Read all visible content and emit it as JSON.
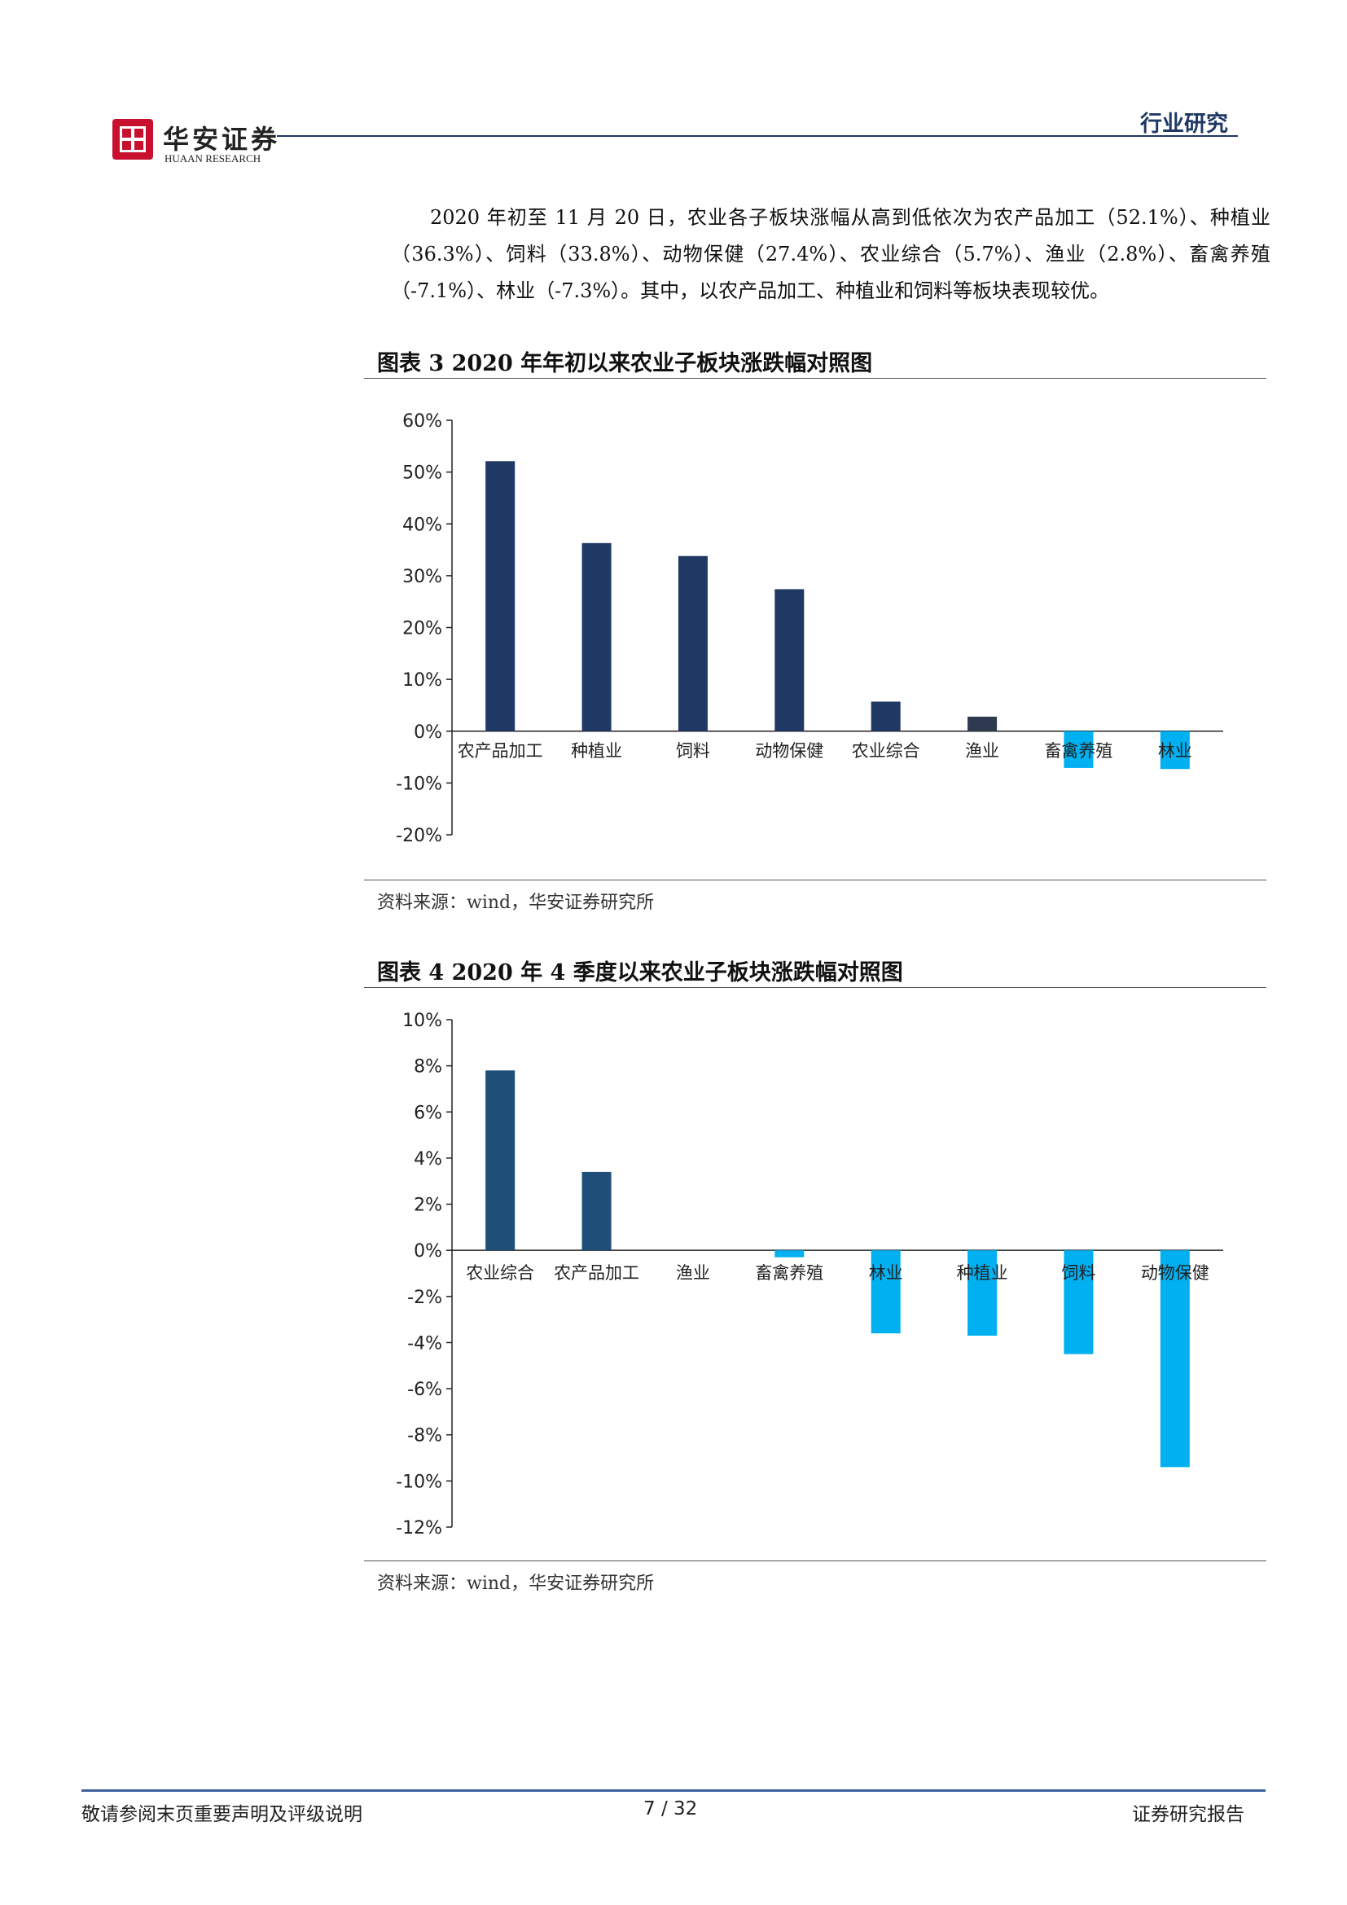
{
  "header": {
    "brand_name": "华安证券",
    "brand_sub": "HUAAN RESEARCH",
    "section": "行业研究"
  },
  "paragraph": "2020 年初至 11 月 20 日，农业各子板块涨幅从高到低依次为农产品加工（52.1%）、种植业（36.3%）、饲料（33.8%）、动物保健（27.4%）、农业综合（5.7%）、渔业（2.8%）、畜禽养殖（-7.1%）、林业（-7.3%）。其中，以农产品加工、种植业和饲料等板块表现较优。",
  "figure3": {
    "title": "图表  3 2020 年年初以来农业子板块涨跌幅对照图",
    "source": "资料来源：wind，华安证券研究所"
  },
  "figure4": {
    "title": "图表  4 2020 年 4 季度以来农业子板块涨跌幅对照图",
    "source": "资料来源：wind，华安证券研究所"
  },
  "chart_data": [
    {
      "type": "bar",
      "title": "图表  3 2020 年年初以来农业子板块涨跌幅对照图",
      "categories": [
        "农产品加工",
        "种植业",
        "饲料",
        "动物保健",
        "农业综合",
        "渔业",
        "畜禽养殖",
        "林业"
      ],
      "values": [
        52.1,
        36.3,
        33.8,
        27.4,
        5.7,
        2.8,
        -7.1,
        -7.3
      ],
      "colors": [
        "#1f3864",
        "#1f3864",
        "#1f3864",
        "#1f3864",
        "#1f3864",
        "#2e3a4f",
        "#00b0f0",
        "#00b0f0"
      ],
      "ylim": [
        -20,
        60
      ],
      "yticks": [
        60,
        50,
        40,
        30,
        20,
        10,
        0,
        -10,
        -20
      ],
      "ytick_labels": [
        "60%",
        "50%",
        "40%",
        "30%",
        "20%",
        "10%",
        "0%",
        "-10%",
        "-20%"
      ],
      "grid": false,
      "legend": "none"
    },
    {
      "type": "bar",
      "title": "图表  4 2020 年 4 季度以来农业子板块涨跌幅对照图",
      "categories": [
        "农业综合",
        "农产品加工",
        "渔业",
        "畜禽养殖",
        "林业",
        "种植业",
        "饲料",
        "动物保健"
      ],
      "values": [
        7.8,
        3.4,
        0.0,
        -0.3,
        -3.6,
        -3.7,
        -4.5,
        -9.4
      ],
      "colors": [
        "#1f4e79",
        "#1f4e79",
        "#1f4e79",
        "#00b0f0",
        "#00b0f0",
        "#00b0f0",
        "#00b0f0",
        "#00b0f0"
      ],
      "ylim": [
        -12,
        10
      ],
      "yticks": [
        10,
        8,
        6,
        4,
        2,
        0,
        -2,
        -4,
        -6,
        -8,
        -10,
        -12
      ],
      "ytick_labels": [
        "10%",
        "8%",
        "6%",
        "4%",
        "2%",
        "0%",
        "-2%",
        "-4%",
        "-6%",
        "-8%",
        "-10%",
        "-12%"
      ],
      "grid": false,
      "legend": "none"
    }
  ],
  "footer": {
    "left": "敬请参阅末页重要声明及评级说明",
    "page": "7 / 32",
    "right": "证券研究报告"
  }
}
